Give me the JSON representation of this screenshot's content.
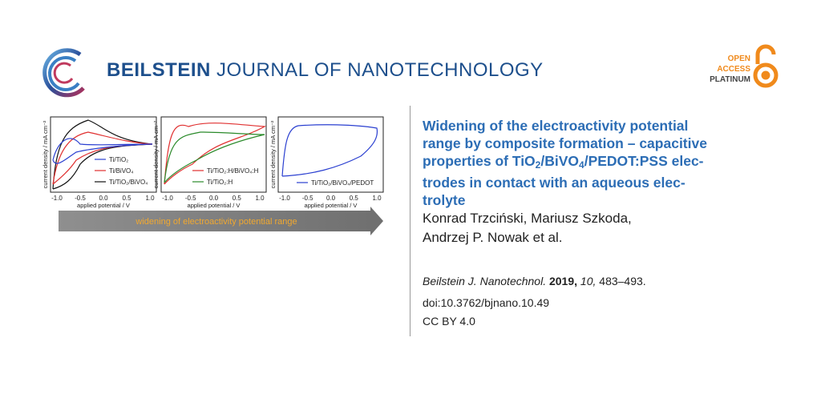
{
  "header": {
    "brand_bold": "BEILSTEIN",
    "brand_rest": "JOURNAL OF NANOTECHNOLOGY",
    "badge": [
      "OPEN",
      "ACCESS",
      "PLATINUM"
    ]
  },
  "graphic": {
    "panels": [
      {
        "y_label": "current density / mA cm⁻²",
        "x_label": "applied potential / V",
        "x_ticks": [
          "-1.0",
          "-0.5",
          "0.0",
          "0.5",
          "1.0"
        ],
        "legend": [
          "Ti/TiO₂",
          "Ti/BiVO₄",
          "Ti/TiO₂/BiVO₄"
        ]
      },
      {
        "y_label": "current density / mA cm⁻²",
        "x_label": "applied potential / V",
        "x_ticks": [
          "-1.0",
          "-0.5",
          "0.0",
          "0.5",
          "1.0"
        ],
        "legend": [
          "Ti/TiO₂:H/BiVO₄:H",
          "Ti/TiO₂:H"
        ]
      },
      {
        "y_label": "current density / mA cm⁻²",
        "x_label": "applied potential / V",
        "x_ticks": [
          "-1.0",
          "-0.5",
          "0.0",
          "0.5",
          "1.0"
        ],
        "legend": [
          "Ti/TiO₂/BiVO₄/PEDOT"
        ]
      }
    ],
    "arrow_label": "widening of electroactivity potential range"
  },
  "article": {
    "title_lines": [
      [
        "Widening of the electroactivity potential"
      ],
      [
        "range by composite formation – capacitive"
      ],
      [
        "properties of TiO",
        "2",
        "/BiVO",
        "4",
        "/PEDOT:PSS elec-"
      ],
      [
        "trodes in contact with an aqueous elec-"
      ],
      [
        "trolyte"
      ]
    ],
    "authors": [
      "Konrad Trzciński, Mariusz Szkoda,",
      "Andrzej P. Nowak et al."
    ],
    "citation": {
      "journal": "Beilstein J. Nanotechnol.",
      "year": "2019,",
      "volume": "10,",
      "pages": "483–493."
    },
    "doi": "doi:10.3762/bjnano.10.49",
    "license": "CC BY 4.0"
  }
}
